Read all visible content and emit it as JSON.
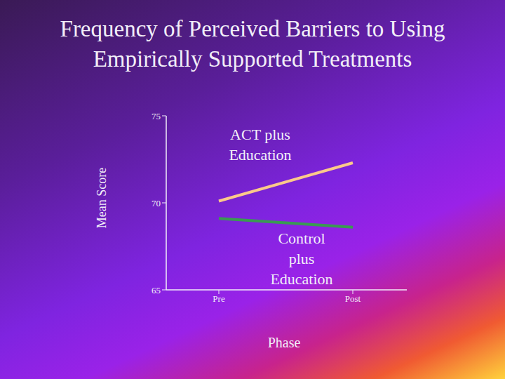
{
  "chart_data": {
    "type": "line",
    "title": "Frequency of Perceived Barriers to Using Empirically Supported Treatments",
    "x_label": "Phase",
    "y_label": "Mean Score",
    "categories": [
      "Pre",
      "Post"
    ],
    "series": [
      {
        "name": "ACT plus Education",
        "color": "#fbc98a",
        "values": [
          70.1,
          72.3
        ]
      },
      {
        "name": "Control plus Education",
        "color": "#3a9a52",
        "values": [
          69.1,
          68.6
        ]
      }
    ],
    "ylim": [
      65,
      75
    ],
    "yticks": [
      65,
      70,
      75
    ],
    "grid": false
  }
}
